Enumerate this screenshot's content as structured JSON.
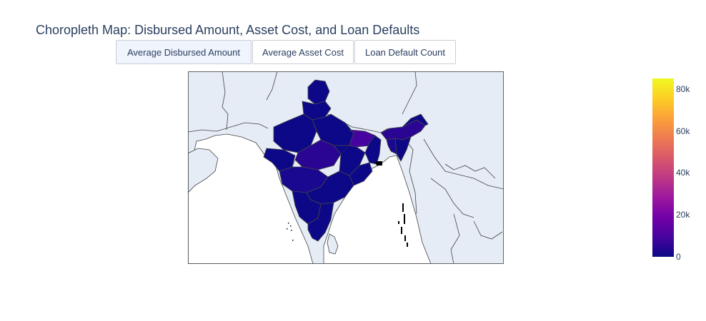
{
  "title": "Choropleth Map: Disbursed Amount, Asset Cost, and Loan Defaults",
  "buttons": [
    {
      "label": "Average Disbursed Amount",
      "active": true
    },
    {
      "label": "Average Asset Cost",
      "active": false
    },
    {
      "label": "Loan Default Count",
      "active": false
    }
  ],
  "colors": {
    "land": "#e5ecf6",
    "border": "#444444",
    "scale": [
      "#0d0887",
      "#46039f",
      "#7201a8",
      "#9c179e",
      "#bd3786",
      "#d8576b",
      "#ed7953",
      "#fb9f3a",
      "#fdca26",
      "#f0f921"
    ]
  },
  "colorbar": {
    "min": 0,
    "max": 85000,
    "ticks": [
      {
        "value": 0,
        "label": "0"
      },
      {
        "value": 20000,
        "label": "20k"
      },
      {
        "value": 40000,
        "label": "40k"
      },
      {
        "value": 60000,
        "label": "60k"
      },
      {
        "value": 80000,
        "label": "80k"
      }
    ]
  }
}
